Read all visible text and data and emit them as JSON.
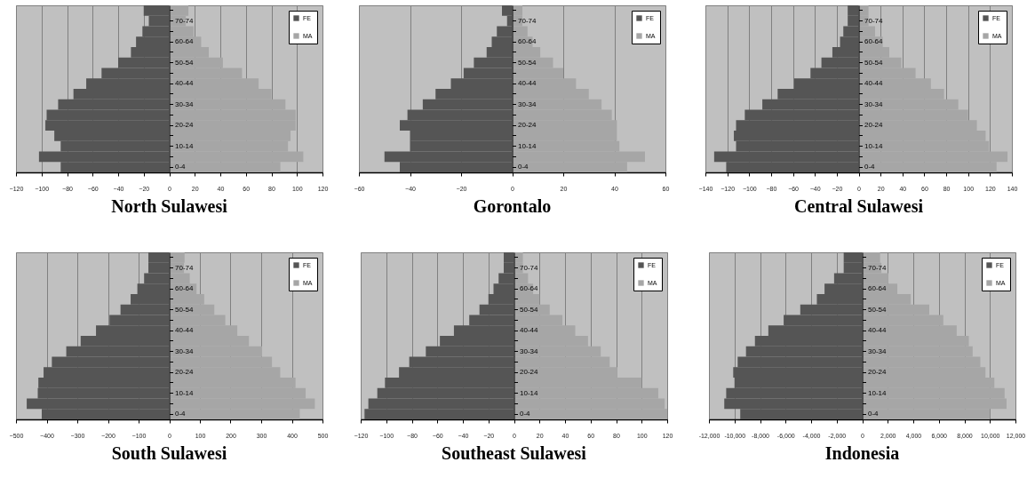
{
  "chart_data": [
    {
      "type": "bar",
      "orientation": "horizontal",
      "title": "North Sulawesi",
      "stacked": true,
      "categories": [
        null,
        "70-74",
        null,
        "60-64",
        null,
        "50-54",
        null,
        "40-44",
        null,
        "30-34",
        null,
        "20-24",
        null,
        "10-14",
        null,
        "0-4"
      ],
      "series": [
        {
          "name": "FE",
          "color": "#555555",
          "values": [
            -20,
            -16,
            -21,
            -26,
            -30,
            -40,
            -53,
            -65,
            -75,
            -87,
            -96,
            -97,
            -90,
            -85,
            -102,
            -85
          ]
        },
        {
          "name": "MA",
          "color": "#a6a6a6",
          "values": [
            15,
            13,
            19,
            25,
            31,
            42,
            57,
            70,
            80,
            91,
            99,
            99,
            95,
            93,
            105,
            87
          ]
        }
      ],
      "xlim": [
        -120,
        120
      ],
      "xticks": [
        -120,
        -100,
        -80,
        -60,
        -40,
        -20,
        0,
        20,
        40,
        60,
        80,
        100,
        120
      ],
      "grid": "x",
      "legend": "top right"
    },
    {
      "type": "bar",
      "orientation": "horizontal",
      "title": "Gorontalo",
      "stacked": true,
      "categories": [
        null,
        "70-74",
        null,
        "60-64",
        null,
        "50-54",
        null,
        "40-44",
        null,
        "30-34",
        null,
        "20-24",
        null,
        "10-14",
        null,
        "0-4"
      ],
      "series": [
        {
          "name": "FE",
          "color": "#555555",
          "values": [
            -4,
            -2,
            -6,
            -8,
            -10,
            -15,
            -19,
            -24,
            -30,
            -35,
            -41,
            -44,
            -40,
            -40,
            -50,
            -44
          ]
        },
        {
          "name": "MA",
          "color": "#a6a6a6",
          "values": [
            4,
            4,
            6,
            8,
            11,
            16,
            20,
            25,
            30,
            35,
            39,
            41,
            41,
            42,
            52,
            45
          ]
        }
      ],
      "xlim": [
        -60,
        60
      ],
      "xticks": [
        -60,
        -40,
        -20,
        0,
        20,
        40,
        60
      ],
      "grid": "x",
      "legend": "top right"
    },
    {
      "type": "bar",
      "orientation": "horizontal",
      "title": "Central Sulawesi",
      "stacked": true,
      "categories": [
        null,
        "70-74",
        null,
        "60-64",
        null,
        "50-54",
        null,
        "40-44",
        null,
        "30-34",
        null,
        "20-24",
        null,
        "10-14",
        null,
        "0-4"
      ],
      "series": [
        {
          "name": "FE",
          "color": "#555555",
          "values": [
            -10,
            -10,
            -14,
            -17,
            -24,
            -34,
            -44,
            -59,
            -74,
            -88,
            -104,
            -112,
            -114,
            -112,
            -132,
            -121
          ]
        },
        {
          "name": "MA",
          "color": "#a6a6a6",
          "values": [
            9,
            9,
            15,
            22,
            28,
            39,
            52,
            66,
            78,
            91,
            100,
            108,
            116,
            119,
            136,
            126
          ]
        }
      ],
      "xlim": [
        -140,
        140
      ],
      "xticks": [
        -140,
        -120,
        -100,
        -80,
        -60,
        -40,
        -20,
        0,
        20,
        40,
        60,
        80,
        100,
        120,
        140
      ],
      "grid": "x",
      "legend": "top right"
    },
    {
      "type": "bar",
      "orientation": "horizontal",
      "title": "South Sulawesi",
      "stacked": true,
      "categories": [
        null,
        "70-74",
        null,
        "60-64",
        null,
        "50-54",
        null,
        "40-44",
        null,
        "30-34",
        null,
        "20-24",
        null,
        "10-14",
        null,
        "0-4"
      ],
      "series": [
        {
          "name": "FE",
          "color": "#555555",
          "values": [
            -68,
            -68,
            -82,
            -104,
            -126,
            -159,
            -195,
            -239,
            -289,
            -336,
            -383,
            -410,
            -427,
            -429,
            -465,
            -416
          ]
        },
        {
          "name": "MA",
          "color": "#a6a6a6",
          "values": [
            50,
            48,
            67,
            89,
            114,
            147,
            183,
            222,
            260,
            303,
            335,
            362,
            412,
            445,
            475,
            426
          ]
        }
      ],
      "xlim": [
        -500,
        500
      ],
      "xticks": [
        -500,
        -400,
        -300,
        -200,
        -100,
        0,
        100,
        200,
        300,
        400,
        500
      ],
      "grid": "x",
      "legend": "top right"
    },
    {
      "type": "bar",
      "orientation": "horizontal",
      "title": "Southeast Sulawesi",
      "stacked": true,
      "categories": [
        null,
        "70-74",
        null,
        "60-64",
        null,
        "50-54",
        null,
        "40-44",
        null,
        "30-34",
        null,
        "20-24",
        null,
        "10-14",
        null,
        "0-4"
      ],
      "series": [
        {
          "name": "FE",
          "color": "#555555",
          "values": [
            -8,
            -8,
            -12,
            -16,
            -20,
            -27,
            -35,
            -47,
            -58,
            -69,
            -82,
            -90,
            -101,
            -107,
            -114,
            -117
          ]
        },
        {
          "name": "MA",
          "color": "#a6a6a6",
          "values": [
            7,
            7,
            11,
            15,
            20,
            28,
            38,
            48,
            58,
            68,
            75,
            81,
            100,
            113,
            118,
            120
          ]
        }
      ],
      "xlim": [
        -120,
        120
      ],
      "xticks": [
        -120,
        -100,
        -80,
        -60,
        -40,
        -20,
        0,
        20,
        40,
        60,
        80,
        100,
        120
      ],
      "grid": "x",
      "legend": "top right"
    },
    {
      "type": "bar",
      "orientation": "horizontal",
      "title": "Indonesia",
      "stacked": true,
      "categories": [
        null,
        "70-74",
        null,
        "60-64",
        null,
        "50-54",
        null,
        "40-44",
        null,
        "30-34",
        null,
        "20-24",
        null,
        "10-14",
        null,
        "0-4"
      ],
      "series": [
        {
          "name": "FE",
          "color": "#555555",
          "values": [
            -1450,
            -1450,
            -2200,
            -2950,
            -3550,
            -4850,
            -6150,
            -7350,
            -8400,
            -9100,
            -9750,
            -10100,
            -10000,
            -10650,
            -10800,
            -9550
          ]
        },
        {
          "name": "MA",
          "color": "#a6a6a6",
          "values": [
            1400,
            1500,
            2050,
            2750,
            3800,
            5250,
            6350,
            7400,
            8350,
            8650,
            9250,
            9650,
            10350,
            11150,
            11300,
            10000
          ]
        }
      ],
      "xlim": [
        -12000,
        12000
      ],
      "xticks": [
        {
          "value": -12000,
          "label": "-12,000"
        },
        {
          "value": -10000,
          "label": "-10,000"
        },
        {
          "value": -8000,
          "label": "-8,000"
        },
        {
          "value": -6000,
          "label": "-6,000"
        },
        {
          "value": -4000,
          "label": "-4,000"
        },
        {
          "value": -2000,
          "label": "-2,000"
        },
        0,
        {
          "value": 2000,
          "label": "2,000"
        },
        {
          "value": 4000,
          "label": "4,000"
        },
        {
          "value": 6000,
          "label": "6,000"
        },
        {
          "value": 8000,
          "label": "8,000"
        },
        {
          "value": 10000,
          "label": "10,000"
        },
        {
          "value": 12000,
          "label": "12,000"
        }
      ],
      "grid": "x",
      "legend": "top right"
    }
  ]
}
